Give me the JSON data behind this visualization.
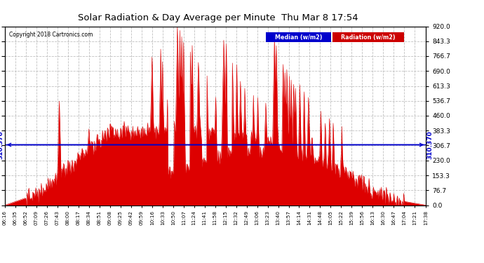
{
  "title": "Solar Radiation & Day Average per Minute  Thu Mar 8 17:54",
  "copyright": "Copyright 2018 Cartronics.com",
  "median_value": 310.37,
  "median_label": "310.370",
  "ymax": 920.0,
  "yticks": [
    0.0,
    76.7,
    153.3,
    230.0,
    306.7,
    383.3,
    460.0,
    536.7,
    613.3,
    690.0,
    766.7,
    843.3,
    920.0
  ],
  "ytick_labels": [
    "0.0",
    "76.7",
    "153.3",
    "230.0",
    "306.7",
    "383.3",
    "460.0",
    "536.7",
    "613.3",
    "690.0",
    "766.7",
    "843.3",
    "920.0"
  ],
  "background_color": "#ffffff",
  "fill_color": "#dd0000",
  "line_color": "#dd0000",
  "median_line_color": "#0000cc",
  "grid_color": "#b0b0b0",
  "title_color": "#000000",
  "copyright_color": "#000000",
  "legend_median_bg": "#0000cc",
  "legend_radiation_bg": "#cc0000",
  "xtick_labels": [
    "06:16",
    "06:35",
    "06:52",
    "07:09",
    "07:26",
    "07:43",
    "08:00",
    "08:17",
    "08:34",
    "08:51",
    "09:08",
    "09:25",
    "09:42",
    "09:59",
    "10:16",
    "10:33",
    "10:50",
    "11:07",
    "11:24",
    "11:41",
    "11:58",
    "12:15",
    "12:32",
    "12:49",
    "13:06",
    "13:23",
    "13:40",
    "13:57",
    "14:14",
    "14:31",
    "14:48",
    "15:05",
    "15:22",
    "15:39",
    "15:56",
    "16:13",
    "16:30",
    "16:47",
    "17:04",
    "17:21",
    "17:38"
  ],
  "n_points": 682
}
